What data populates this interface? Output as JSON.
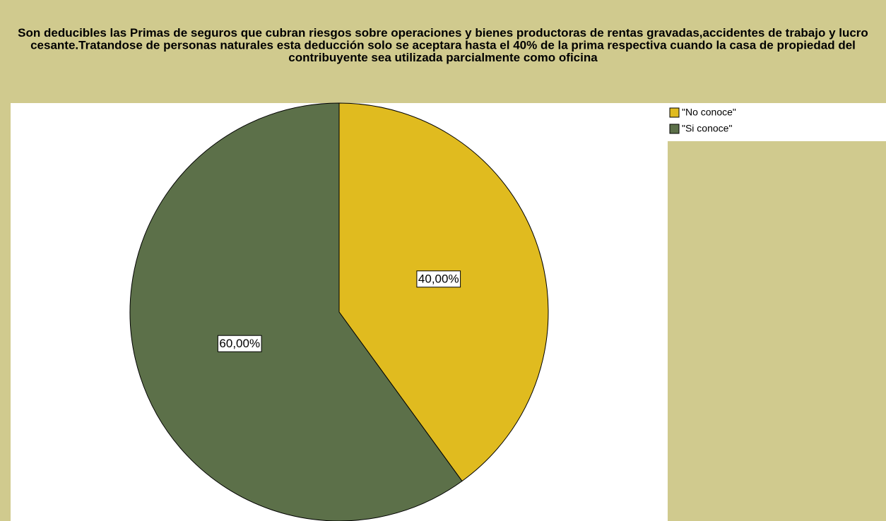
{
  "chart_data": {
    "type": "pie",
    "title": "Son deducibles las Primas de seguros que cubran riesgos sobre operaciones y bienes productoras de rentas gravadas,accidentes de trabajo y lucro cesante.Tratandose de personas naturales esta deducción solo se aceptara hasta el 40% de la prima respectiva cuando la casa de propiedad del contribuyente sea utilizada parcialmente como oficina",
    "categories": [
      "\"No conoce\"",
      "\"Si conoce\""
    ],
    "values": [
      40,
      60
    ],
    "value_labels": [
      "40,00%",
      "60,00%"
    ],
    "colors": [
      "#e0bb1f",
      "#5c7049"
    ],
    "legend": "top-right"
  }
}
